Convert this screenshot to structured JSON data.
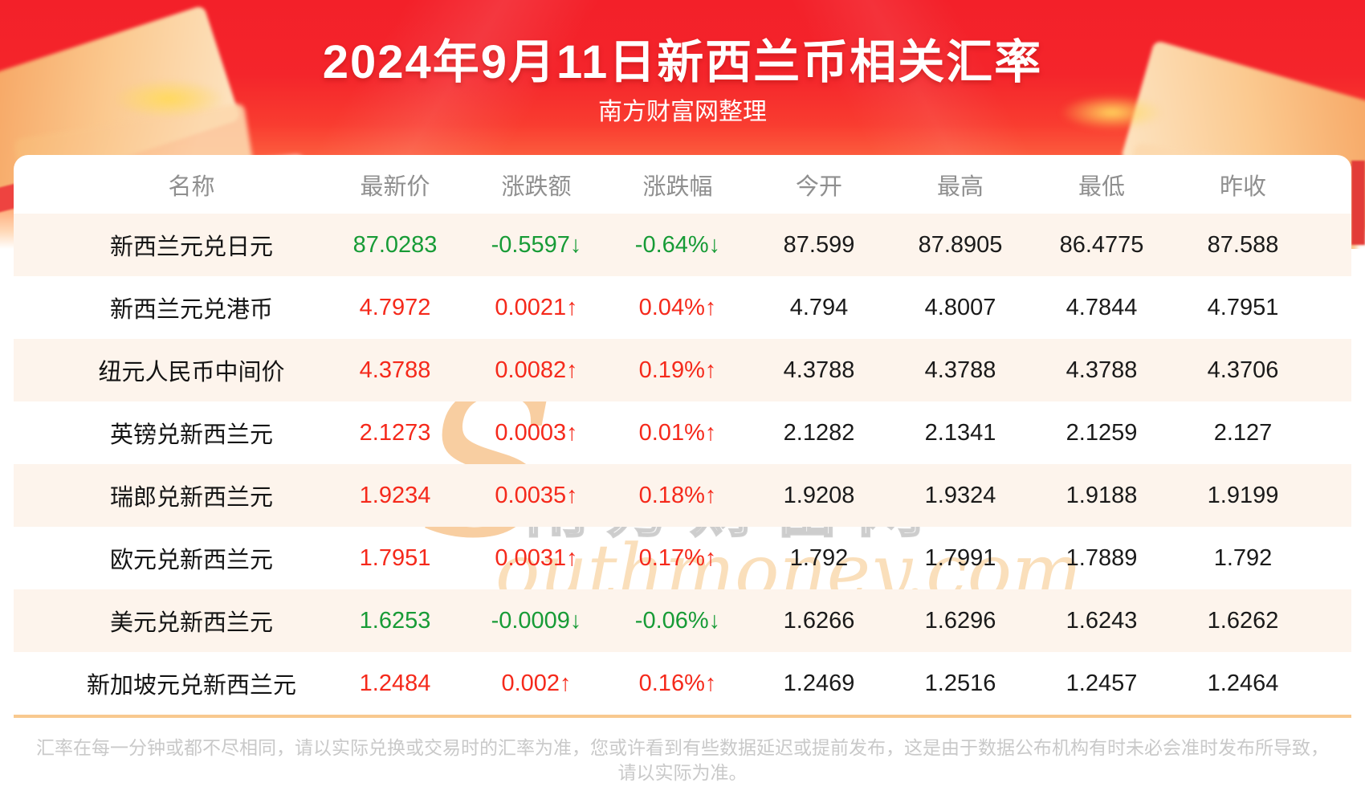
{
  "header": {
    "title": "2024年9月11日新西兰币相关汇率",
    "subtitle": "南方财富网整理"
  },
  "table": {
    "columns": [
      "名称",
      "最新价",
      "涨跌额",
      "涨跌幅",
      "今开",
      "最高",
      "最低",
      "昨收"
    ],
    "rows": [
      {
        "name": "新西兰元兑日元",
        "latest": "87.0283",
        "change": "-0.5597↓",
        "change_pct": "-0.64%↓",
        "open": "87.599",
        "high": "87.8905",
        "low": "86.4775",
        "prev_close": "87.588",
        "trend": "down"
      },
      {
        "name": "新西兰元兑港币",
        "latest": "4.7972",
        "change": "0.0021↑",
        "change_pct": "0.04%↑",
        "open": "4.794",
        "high": "4.8007",
        "low": "4.7844",
        "prev_close": "4.7951",
        "trend": "up"
      },
      {
        "name": "纽元人民币中间价",
        "latest": "4.3788",
        "change": "0.0082↑",
        "change_pct": "0.19%↑",
        "open": "4.3788",
        "high": "4.3788",
        "low": "4.3788",
        "prev_close": "4.3706",
        "trend": "up"
      },
      {
        "name": "英镑兑新西兰元",
        "latest": "2.1273",
        "change": "0.0003↑",
        "change_pct": "0.01%↑",
        "open": "2.1282",
        "high": "2.1341",
        "low": "2.1259",
        "prev_close": "2.127",
        "trend": "up"
      },
      {
        "name": "瑞郎兑新西兰元",
        "latest": "1.9234",
        "change": "0.0035↑",
        "change_pct": "0.18%↑",
        "open": "1.9208",
        "high": "1.9324",
        "low": "1.9188",
        "prev_close": "1.9199",
        "trend": "up"
      },
      {
        "name": "欧元兑新西兰元",
        "latest": "1.7951",
        "change": "0.0031↑",
        "change_pct": "0.17%↑",
        "open": "1.792",
        "high": "1.7991",
        "low": "1.7889",
        "prev_close": "1.792",
        "trend": "up"
      },
      {
        "name": "美元兑新西兰元",
        "latest": "1.6253",
        "change": "-0.0009↓",
        "change_pct": "-0.06%↓",
        "open": "1.6266",
        "high": "1.6296",
        "low": "1.6243",
        "prev_close": "1.6262",
        "trend": "down"
      },
      {
        "name": "新加坡元兑新西兰元",
        "latest": "1.2484",
        "change": "0.002↑",
        "change_pct": "0.16%↑",
        "open": "1.2469",
        "high": "1.2516",
        "low": "1.2457",
        "prev_close": "1.2464",
        "trend": "up"
      }
    ]
  },
  "chart_data": {
    "type": "table",
    "title": "2024年9月11日新西兰币相关汇率",
    "subtitle": "南方财富网整理",
    "columns": [
      "名称",
      "最新价",
      "涨跌额",
      "涨跌幅",
      "今开",
      "最高",
      "最低",
      "昨收"
    ],
    "rows": [
      [
        "新西兰元兑日元",
        87.0283,
        -0.5597,
        "-0.64%",
        87.599,
        87.8905,
        86.4775,
        87.588
      ],
      [
        "新西兰元兑港币",
        4.7972,
        0.0021,
        "0.04%",
        4.794,
        4.8007,
        4.7844,
        4.7951
      ],
      [
        "纽元人民币中间价",
        4.3788,
        0.0082,
        "0.19%",
        4.3788,
        4.3788,
        4.3788,
        4.3706
      ],
      [
        "英镑兑新西兰元",
        2.1273,
        0.0003,
        "0.01%",
        2.1282,
        2.1341,
        2.1259,
        2.127
      ],
      [
        "瑞郎兑新西兰元",
        1.9234,
        0.0035,
        "0.18%",
        1.9208,
        1.9324,
        1.9188,
        1.9199
      ],
      [
        "欧元兑新西兰元",
        1.7951,
        0.0031,
        "0.17%",
        1.792,
        1.7991,
        1.7889,
        1.792
      ],
      [
        "美元兑新西兰元",
        1.6253,
        -0.0009,
        "-0.06%",
        1.6266,
        1.6296,
        1.6243,
        1.6262
      ],
      [
        "新加坡元兑新西兰元",
        1.2484,
        0.002,
        "0.16%",
        1.2469,
        1.2516,
        1.2457,
        1.2464
      ]
    ]
  },
  "watermark": {
    "s": "S",
    "cn": "南方财富网",
    "en": "outhmoney.com"
  },
  "footer": {
    "note_line1": "汇率在每一分钟或都不尽相同，请以实际兑换或交易时的汇率为准，您或许看到有些数据延迟或提前发布，这是由于数据公布机构有时未必会准时发布所导致，",
    "note_line2": "请以实际为准。"
  },
  "colors": {
    "up": "#f5291b",
    "down": "#179b36",
    "banner_red": "#f32029",
    "row_stripe": "#fdf4ec",
    "divider": "#f8c98f"
  },
  "hero_decorations": [
    "gift-boxes-left",
    "gift-boxes-right",
    "gold-glow-left",
    "gold-glow-right",
    "red-ribbon-left",
    "red-strip-right"
  ]
}
